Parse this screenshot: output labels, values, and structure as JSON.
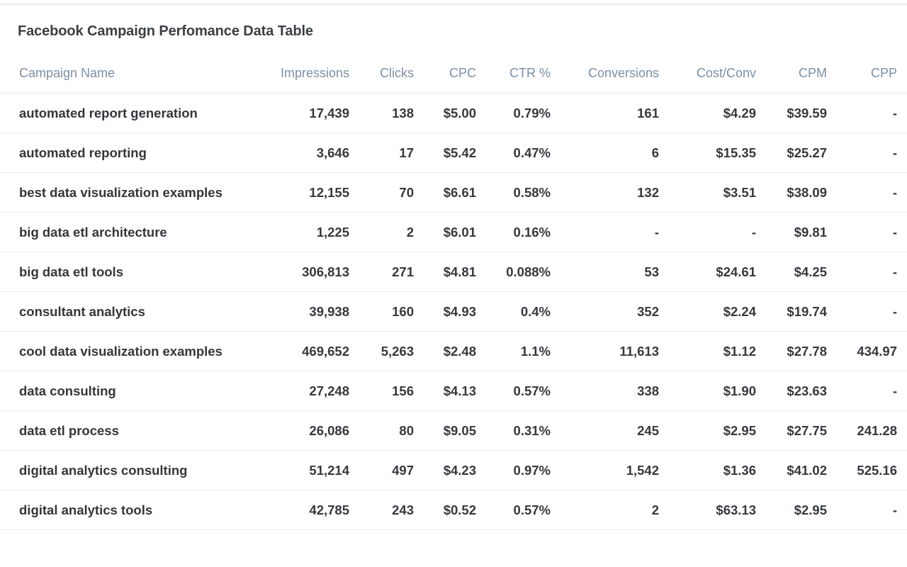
{
  "panel": {
    "title": "Facebook Campaign Perfomance Data Table"
  },
  "table": {
    "headers": {
      "name": "Campaign Name",
      "impressions": "Impressions",
      "clicks": "Clicks",
      "cpc": "CPC",
      "ctr": "CTR %",
      "conversions": "Conversions",
      "cost_conv": "Cost/Conv",
      "cpm": "CPM",
      "cpp": "CPP"
    },
    "rows": [
      {
        "name": "automated report generation",
        "impressions": "17,439",
        "clicks": "138",
        "cpc": "$5.00",
        "ctr": "0.79%",
        "conversions": "161",
        "cost_conv": "$4.29",
        "cpm": "$39.59",
        "cpp": "-"
      },
      {
        "name": "automated reporting",
        "impressions": "3,646",
        "clicks": "17",
        "cpc": "$5.42",
        "ctr": "0.47%",
        "conversions": "6",
        "cost_conv": "$15.35",
        "cpm": "$25.27",
        "cpp": "-"
      },
      {
        "name": "best data visualization examples",
        "impressions": "12,155",
        "clicks": "70",
        "cpc": "$6.61",
        "ctr": "0.58%",
        "conversions": "132",
        "cost_conv": "$3.51",
        "cpm": "$38.09",
        "cpp": "-"
      },
      {
        "name": "big data etl architecture",
        "impressions": "1,225",
        "clicks": "2",
        "cpc": "$6.01",
        "ctr": "0.16%",
        "conversions": "-",
        "cost_conv": "-",
        "cpm": "$9.81",
        "cpp": "-"
      },
      {
        "name": "big data etl tools",
        "impressions": "306,813",
        "clicks": "271",
        "cpc": "$4.81",
        "ctr": "0.088%",
        "conversions": "53",
        "cost_conv": "$24.61",
        "cpm": "$4.25",
        "cpp": "-"
      },
      {
        "name": "consultant analytics",
        "impressions": "39,938",
        "clicks": "160",
        "cpc": "$4.93",
        "ctr": "0.4%",
        "conversions": "352",
        "cost_conv": "$2.24",
        "cpm": "$19.74",
        "cpp": "-"
      },
      {
        "name": "cool data visualization examples",
        "impressions": "469,652",
        "clicks": "5,263",
        "cpc": "$2.48",
        "ctr": "1.1%",
        "conversions": "11,613",
        "cost_conv": "$1.12",
        "cpm": "$27.78",
        "cpp": "434.97"
      },
      {
        "name": "data consulting",
        "impressions": "27,248",
        "clicks": "156",
        "cpc": "$4.13",
        "ctr": "0.57%",
        "conversions": "338",
        "cost_conv": "$1.90",
        "cpm": "$23.63",
        "cpp": "-"
      },
      {
        "name": "data etl process",
        "impressions": "26,086",
        "clicks": "80",
        "cpc": "$9.05",
        "ctr": "0.31%",
        "conversions": "245",
        "cost_conv": "$2.95",
        "cpm": "$27.75",
        "cpp": "241.28"
      },
      {
        "name": "digital analytics consulting",
        "impressions": "51,214",
        "clicks": "497",
        "cpc": "$4.23",
        "ctr": "0.97%",
        "conversions": "1,542",
        "cost_conv": "$1.36",
        "cpm": "$41.02",
        "cpp": "525.16"
      },
      {
        "name": "digital analytics tools",
        "impressions": "42,785",
        "clicks": "243",
        "cpc": "$0.52",
        "ctr": "0.57%",
        "conversions": "2",
        "cost_conv": "$63.13",
        "cpm": "$2.95",
        "cpp": "-"
      }
    ]
  }
}
